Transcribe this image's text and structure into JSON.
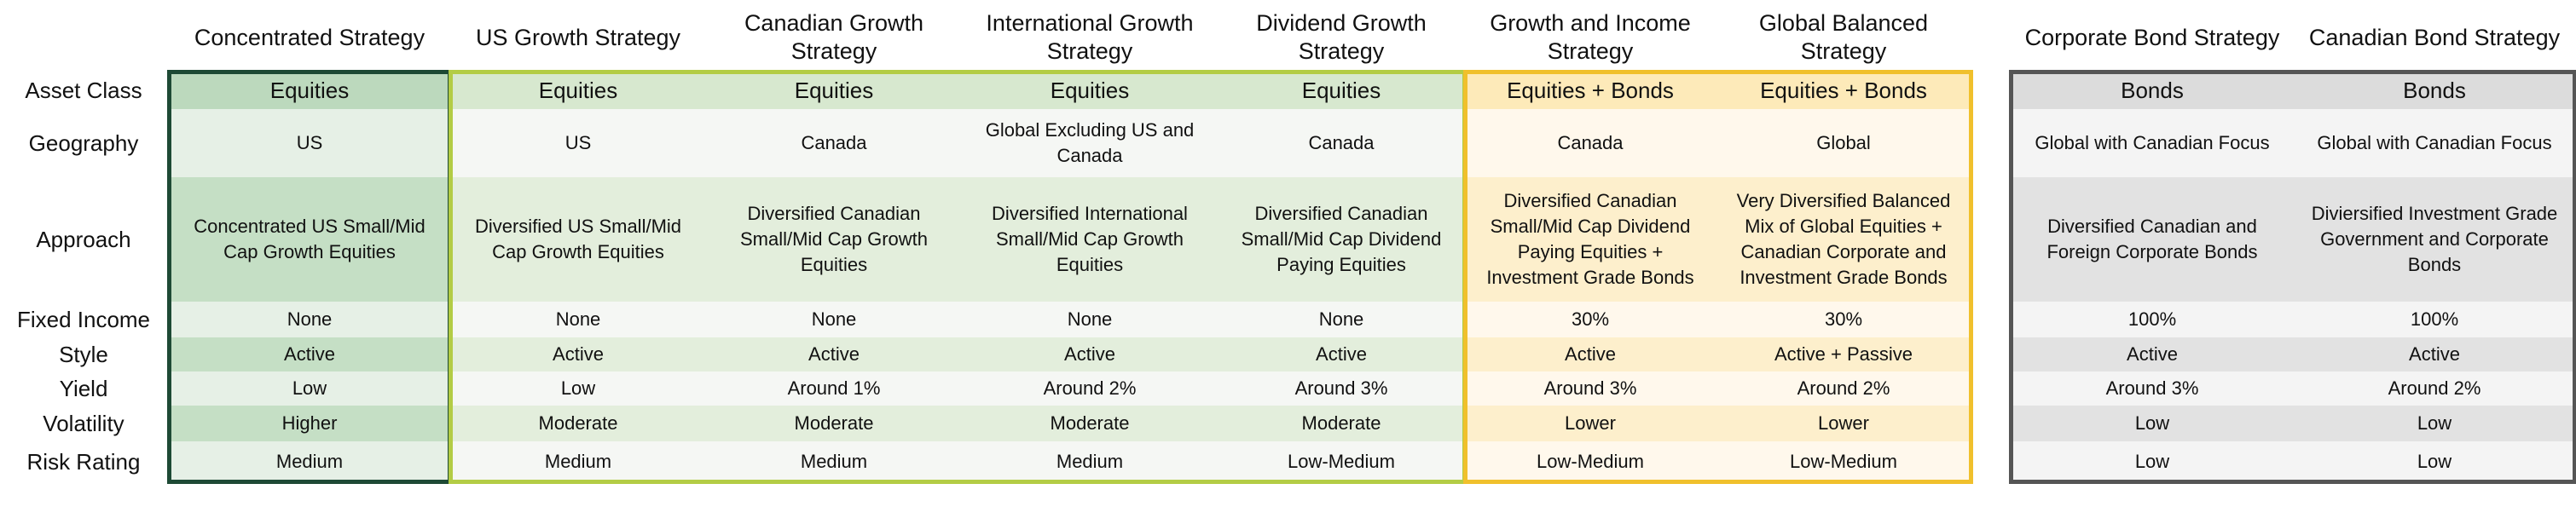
{
  "row_labels": [
    "Asset Class",
    "Geography",
    "Approach",
    "Fixed Income",
    "Style",
    "Yield",
    "Volatility",
    "Risk Rating"
  ],
  "strategies": [
    {
      "name": "Concentrated Strategy",
      "asset_class": "Equities",
      "geography": "US",
      "approach": "Concentrated US Small/Mid Cap Growth Equities",
      "fixed_income": "None",
      "style": "Active",
      "yield": "Low",
      "volatility": "Higher",
      "risk_rating": "Medium"
    },
    {
      "name": "US Growth Strategy",
      "asset_class": "Equities",
      "geography": "US",
      "approach": "Diversified US Small/Mid Cap Growth Equities",
      "fixed_income": "None",
      "style": "Active",
      "yield": "Low",
      "volatility": "Moderate",
      "risk_rating": "Medium"
    },
    {
      "name": "Canadian Growth Strategy",
      "asset_class": "Equities",
      "geography": "Canada",
      "approach": "Diversified Canadian Small/Mid Cap Growth Equities",
      "fixed_income": "None",
      "style": "Active",
      "yield": "Around 1%",
      "volatility": "Moderate",
      "risk_rating": "Medium"
    },
    {
      "name": "International Growth Strategy",
      "asset_class": "Equities",
      "geography": "Global Excluding US and Canada",
      "approach": "Diversified International Small/Mid Cap Growth Equities",
      "fixed_income": "None",
      "style": "Active",
      "yield": "Around 2%",
      "volatility": "Moderate",
      "risk_rating": "Medium"
    },
    {
      "name": "Dividend Growth Strategy",
      "asset_class": "Equities",
      "geography": "Canada",
      "approach": "Diversified Canadian Small/Mid Cap Dividend Paying Equities",
      "fixed_income": "None",
      "style": "Active",
      "yield": "Around 3%",
      "volatility": "Moderate",
      "risk_rating": "Low-Medium"
    },
    {
      "name": "Growth and Income Strategy",
      "asset_class": "Equities + Bonds",
      "geography": "Canada",
      "approach": "Diversified Canadian Small/Mid Cap Dividend Paying Equities + Investment Grade Bonds",
      "fixed_income": "30%",
      "style": "Active",
      "yield": "Around 3%",
      "volatility": "Lower",
      "risk_rating": "Low-Medium"
    },
    {
      "name": "Global Balanced Strategy",
      "asset_class": "Equities + Bonds",
      "geography": "Global",
      "approach": "Very Diversified Balanced Mix of Global Equities + Canadian Corporate and Investment Grade Bonds",
      "fixed_income": "30%",
      "style": "Active + Passive",
      "yield": "Around 2%",
      "volatility": "Lower",
      "risk_rating": "Low-Medium"
    },
    {
      "name": "Corporate Bond Strategy",
      "asset_class": "Bonds",
      "geography": "Global with Canadian Focus",
      "approach": "Diversified Canadian and Foreign Corporate Bonds",
      "fixed_income": "100%",
      "style": "Active",
      "yield": "Around 3%",
      "volatility": "Low",
      "risk_rating": "Low"
    },
    {
      "name": "Canadian Bond Strategy",
      "asset_class": "Bonds",
      "geography": "Global with Canadian Focus",
      "approach": "Diviersified Investment Grade Government and Corporate Bonds",
      "fixed_income": "100%",
      "style": "Active",
      "yield": "Around 2%",
      "volatility": "Low",
      "risk_rating": "Low"
    }
  ],
  "groups": [
    {
      "name": "concentrated",
      "border": "#1e4a35",
      "header": "#bcd9bd",
      "shades": [
        "#e6f0e6",
        "#c5dfc5"
      ]
    },
    {
      "name": "equity-growth",
      "border": "#b3cc45",
      "header": "#d7e8cf",
      "shades": [
        "#f5f7f4",
        "#e3eedc"
      ]
    },
    {
      "name": "balanced",
      "border": "#f0c02c",
      "header": "#fdeab9",
      "shades": [
        "#fff8ec",
        "#fdefcc"
      ]
    },
    {
      "name": "bonds",
      "border": "#555555",
      "header": "#dcdcdc",
      "shades": [
        "#f4f4f4",
        "#e2e2e2"
      ]
    }
  ]
}
